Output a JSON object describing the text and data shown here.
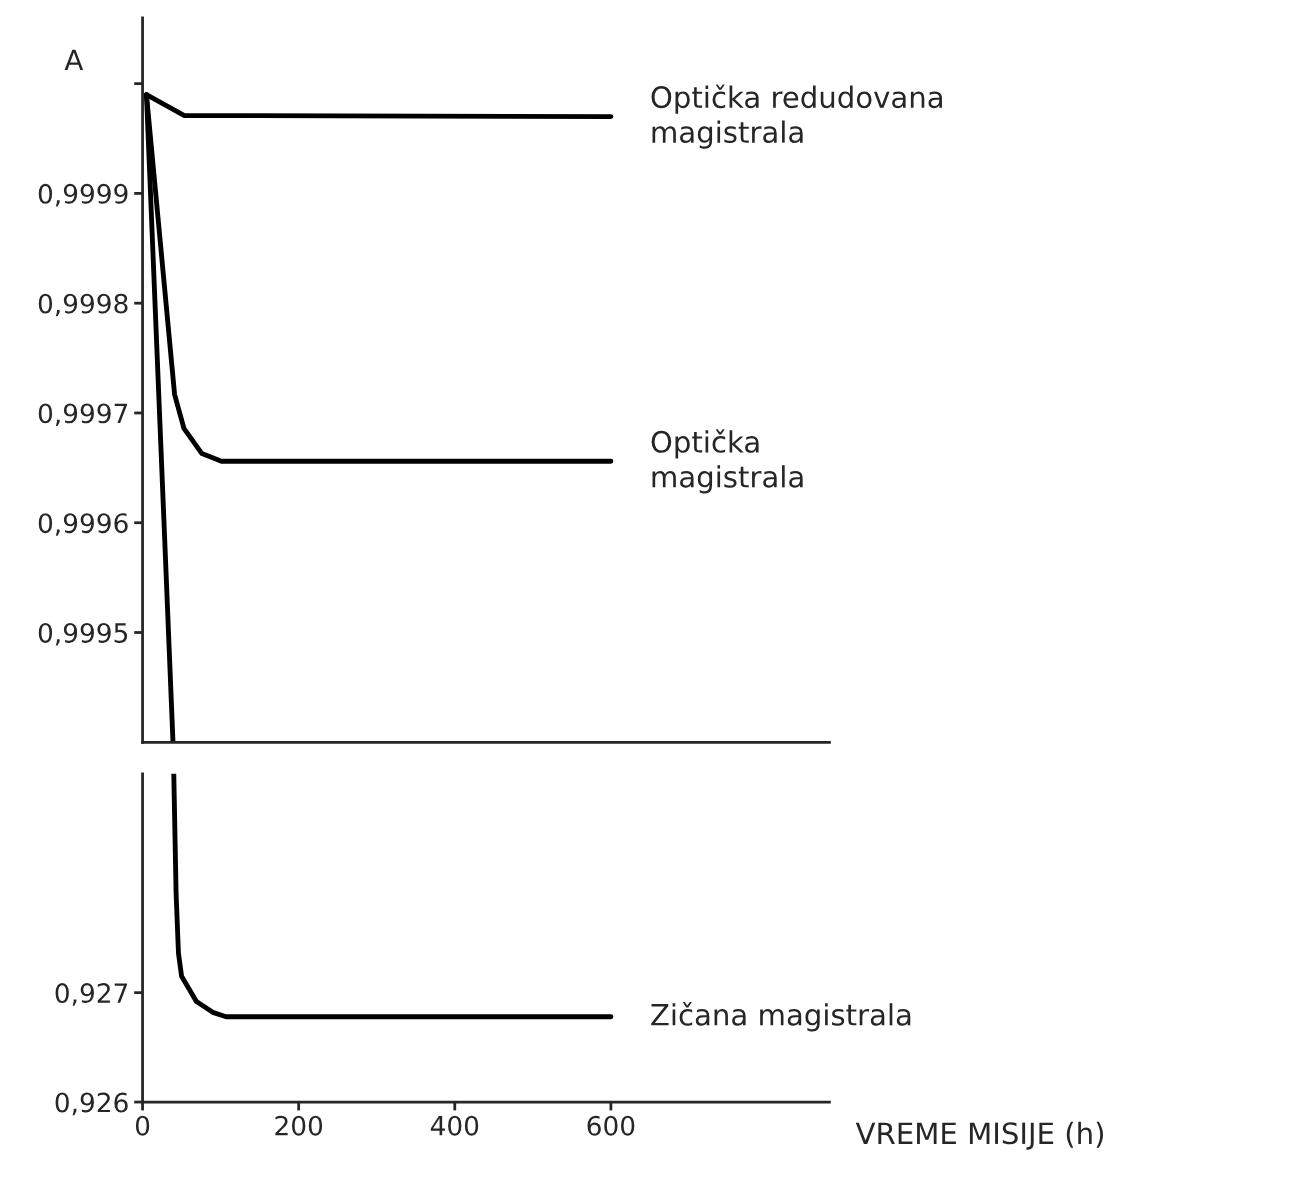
{
  "chart_data": [
    {
      "type": "line",
      "ylabel": "A",
      "xlim": [
        0,
        880
      ],
      "ylim": [
        0.9994,
        1.00006
      ],
      "tick_labels": "y",
      "grid": false,
      "marker": "none",
      "line_style": "solid",
      "yticks": [
        {
          "value": 0.9995,
          "label": "0,9995"
        },
        {
          "value": 0.9996,
          "label": "0,9996"
        },
        {
          "value": 0.9997,
          "label": "0,9997"
        },
        {
          "value": 0.9998,
          "label": "0,9998"
        },
        {
          "value": 0.9999,
          "label": "0,9999"
        },
        {
          "value": 1.0,
          "label": null
        }
      ],
      "series": [
        {
          "name": "Optička redudovana\nmagistrala",
          "color": "#000000",
          "x": [
            5,
            53,
            600
          ],
          "values": [
            0.99999,
            0.999971,
            0.99997
          ]
        },
        {
          "name": "Optička\nmagistrala",
          "color": "#000000",
          "x": [
            5,
            41,
            53,
            76,
            101,
            600
          ],
          "values": [
            0.99999,
            0.999717,
            0.999686,
            0.999663,
            0.999656,
            0.999656
          ]
        },
        {
          "color": "#000000",
          "x": [
            5,
            39
          ],
          "values": [
            0.99999,
            0.9994
          ]
        }
      ]
    },
    {
      "type": "line",
      "xlabel": "VREME MISIJE (h)",
      "xlim": [
        0,
        880
      ],
      "ylim": [
        0.926,
        0.929
      ],
      "grid": false,
      "marker": "none",
      "line_style": "solid",
      "xticks": [
        0,
        200,
        400,
        600
      ],
      "yticks": [
        {
          "value": 0.926,
          "label": "0,926"
        },
        {
          "value": 0.927,
          "label": "0,927"
        }
      ],
      "series": [
        {
          "name": "Zičana magistrala",
          "color": "#000000",
          "x": [
            40,
            43,
            46,
            50,
            69,
            90,
            107,
            600
          ],
          "values": [
            0.929,
            0.9279,
            0.92736,
            0.92715,
            0.92692,
            0.92682,
            0.92678,
            0.92678
          ]
        }
      ]
    }
  ]
}
